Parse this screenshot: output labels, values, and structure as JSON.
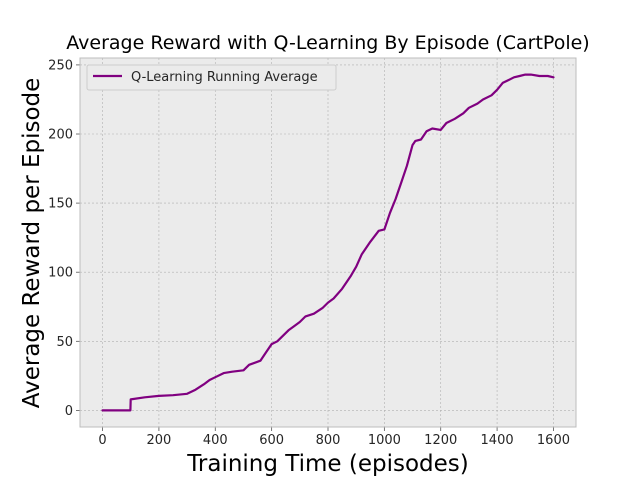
{
  "chart_data": {
    "type": "line",
    "title": "Average Reward with Q-Learning By Episode (CartPole)",
    "xlabel": "Training Time (episodes)",
    "ylabel": "Average Reward per Episode",
    "xlim": [
      -80,
      1680
    ],
    "ylim": [
      -12,
      255
    ],
    "xticks": [
      0,
      200,
      400,
      600,
      800,
      1000,
      1200,
      1400,
      1600
    ],
    "yticks": [
      0,
      50,
      100,
      150,
      200,
      250
    ],
    "grid": true,
    "legend_position": "upper-left",
    "colors": {
      "line": "#800080",
      "plot_background": "#ebebeb",
      "grid": "#b0b0b0",
      "frame": "#bcbcbc"
    },
    "series": [
      {
        "name": "Q-Learning Running Average",
        "x": [
          0,
          95,
          99,
          100,
          150,
          200,
          250,
          300,
          330,
          360,
          380,
          400,
          430,
          460,
          500,
          520,
          560,
          580,
          600,
          620,
          640,
          660,
          680,
          700,
          720,
          750,
          780,
          800,
          820,
          850,
          880,
          900,
          920,
          950,
          980,
          1000,
          1020,
          1040,
          1060,
          1080,
          1100,
          1110,
          1130,
          1150,
          1170,
          1200,
          1220,
          1250,
          1280,
          1300,
          1330,
          1350,
          1380,
          1400,
          1420,
          1440,
          1460,
          1480,
          1500,
          1520,
          1550,
          1580,
          1600
        ],
        "y": [
          0,
          0,
          0,
          8,
          9.5,
          10.5,
          11,
          12,
          15,
          19,
          22,
          24,
          27,
          28,
          29,
          33,
          36,
          42,
          48,
          50,
          54,
          58,
          61,
          64,
          68,
          70,
          74,
          78,
          81,
          88,
          97,
          104,
          113,
          122,
          130,
          131,
          143,
          153,
          165,
          177,
          192,
          195,
          196,
          202,
          204,
          203,
          208,
          211,
          215,
          219,
          222,
          225,
          228,
          232,
          237,
          239,
          241,
          242,
          243,
          243,
          242,
          242,
          241
        ]
      }
    ]
  }
}
